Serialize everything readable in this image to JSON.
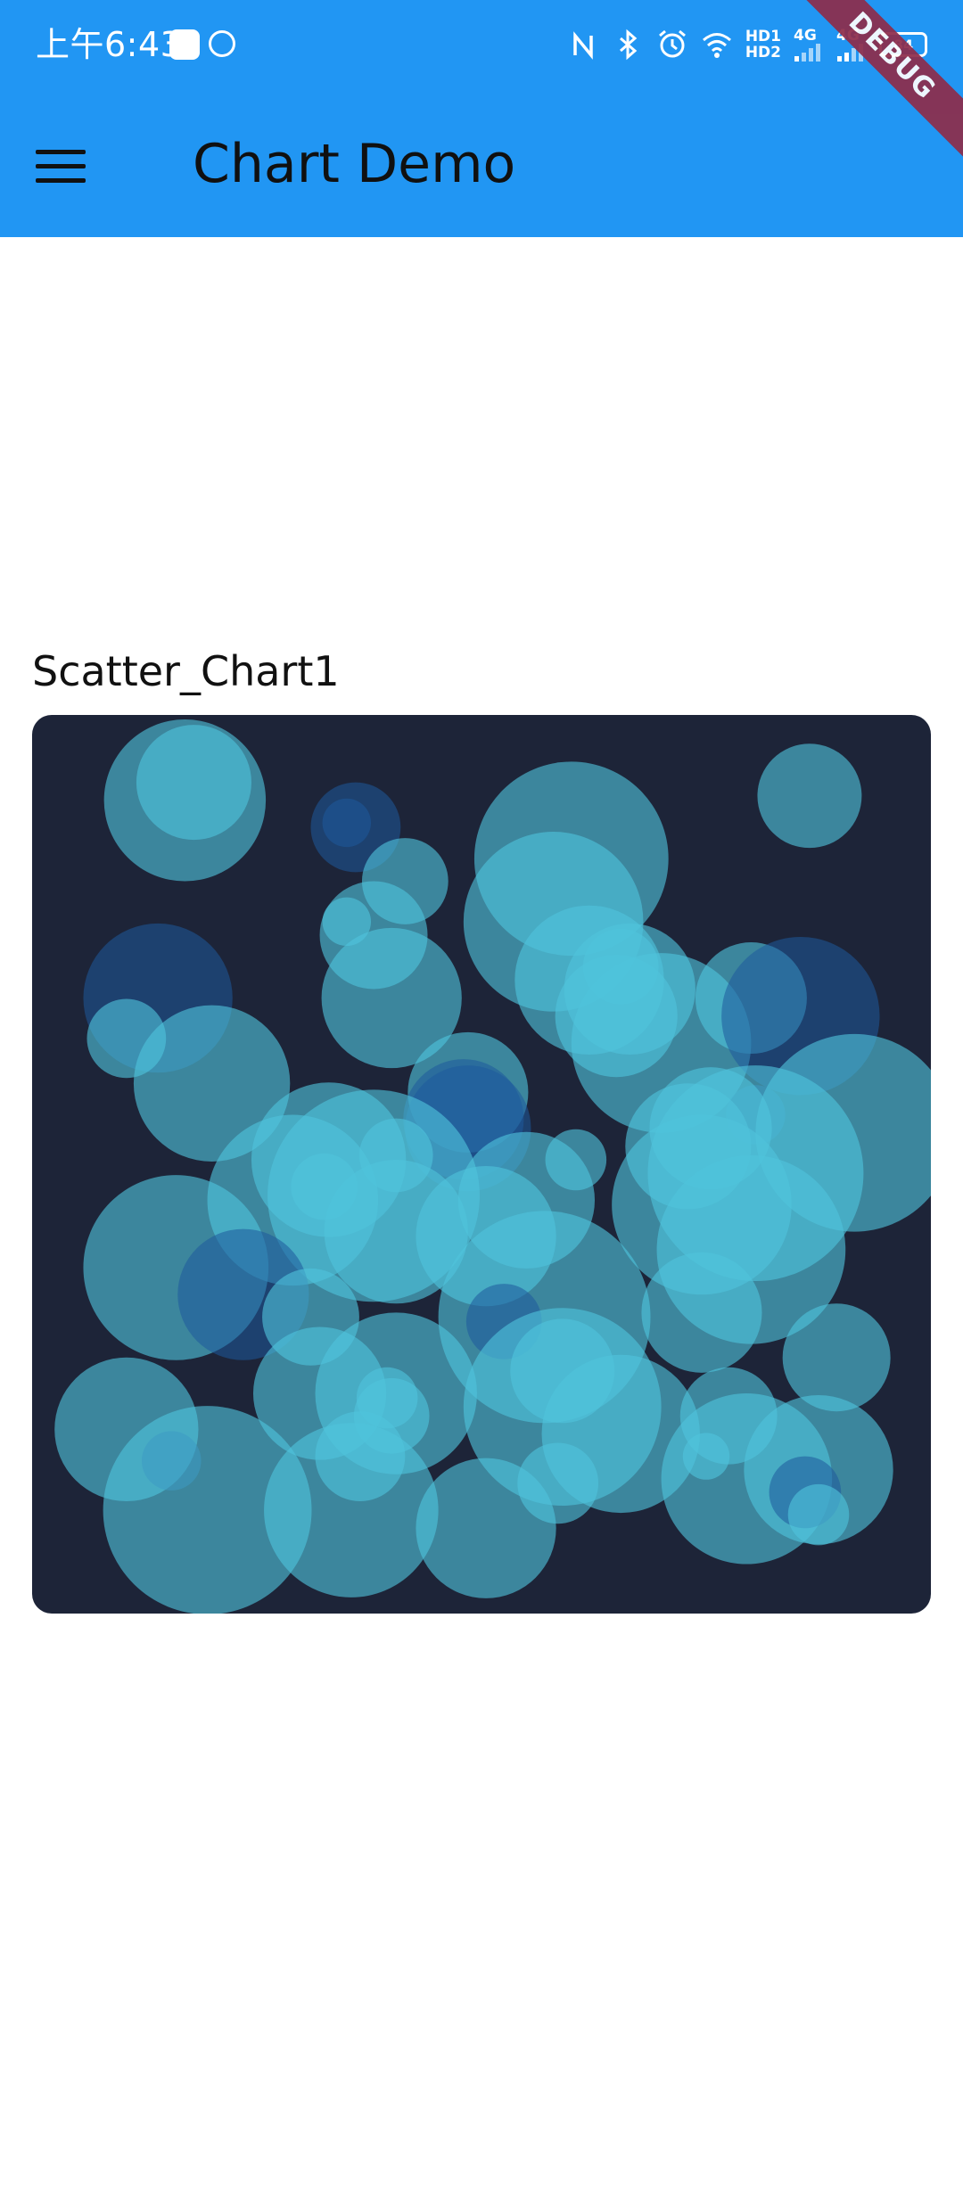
{
  "status_bar": {
    "time": "上午6:43",
    "network_1": "4G",
    "network_2": "4G",
    "hd_top": "HD1",
    "hd_bottom": "HD2",
    "battery": "84",
    "icons": [
      "nfc-icon",
      "bluetooth-icon",
      "alarm-icon",
      "wifi-icon",
      "signal-icon",
      "battery-icon"
    ]
  },
  "app_bar": {
    "title": "Chart Demo",
    "menu_icon": "menu-icon",
    "color": "#2196F3"
  },
  "debug_banner": "DEBUG",
  "chart": {
    "title": "Scatter_Chart1",
    "background": "#1d2438"
  },
  "chart_data": {
    "type": "scatter",
    "title": "",
    "xlabel": "",
    "ylabel": "",
    "xlim": [
      0,
      100
    ],
    "ylim": [
      0,
      100
    ],
    "grid": false,
    "colors": {
      "teal": "#4fc3dc",
      "blue": "#1e5a9c"
    },
    "points": [
      {
        "x": 17.0,
        "y": 90.5,
        "r": 9.0,
        "c": "teal"
      },
      {
        "x": 18.0,
        "y": 92.5,
        "r": 6.4,
        "c": "teal"
      },
      {
        "x": 36.0,
        "y": 87.5,
        "r": 5.0,
        "c": "blue"
      },
      {
        "x": 35.0,
        "y": 88.0,
        "r": 2.7,
        "c": "blue"
      },
      {
        "x": 41.5,
        "y": 81.5,
        "r": 4.8,
        "c": "teal"
      },
      {
        "x": 35.0,
        "y": 77.0,
        "r": 2.7,
        "c": "teal"
      },
      {
        "x": 38.0,
        "y": 75.5,
        "r": 6.0,
        "c": "teal"
      },
      {
        "x": 40.0,
        "y": 68.5,
        "r": 7.8,
        "c": "teal"
      },
      {
        "x": 60.0,
        "y": 84.0,
        "r": 10.8,
        "c": "teal"
      },
      {
        "x": 58.0,
        "y": 77.0,
        "r": 10.0,
        "c": "teal"
      },
      {
        "x": 62.0,
        "y": 70.5,
        "r": 8.3,
        "c": "teal"
      },
      {
        "x": 65.0,
        "y": 66.5,
        "r": 6.8,
        "c": "teal"
      },
      {
        "x": 66.5,
        "y": 69.5,
        "r": 7.3,
        "c": "teal"
      },
      {
        "x": 65.5,
        "y": 72.0,
        "r": 4.2,
        "c": "teal"
      },
      {
        "x": 70.0,
        "y": 63.5,
        "r": 10.0,
        "c": "teal"
      },
      {
        "x": 86.5,
        "y": 91.0,
        "r": 5.8,
        "c": "teal"
      },
      {
        "x": 80.0,
        "y": 68.5,
        "r": 6.2,
        "c": "teal"
      },
      {
        "x": 85.5,
        "y": 66.5,
        "r": 8.8,
        "c": "blue"
      },
      {
        "x": 14.0,
        "y": 68.5,
        "r": 8.3,
        "c": "blue"
      },
      {
        "x": 10.5,
        "y": 64.0,
        "r": 4.4,
        "c": "teal"
      },
      {
        "x": 20.0,
        "y": 59.0,
        "r": 8.7,
        "c": "teal"
      },
      {
        "x": 48.5,
        "y": 58.0,
        "r": 6.7,
        "c": "teal"
      },
      {
        "x": 48.0,
        "y": 55.0,
        "r": 6.7,
        "c": "blue"
      },
      {
        "x": 48.5,
        "y": 54.0,
        "r": 7.0,
        "c": "blue"
      },
      {
        "x": 80.5,
        "y": 55.5,
        "r": 3.3,
        "c": "blue"
      },
      {
        "x": 91.5,
        "y": 53.5,
        "r": 11.0,
        "c": "teal"
      },
      {
        "x": 75.5,
        "y": 54.0,
        "r": 6.8,
        "c": "teal"
      },
      {
        "x": 73.0,
        "y": 52.0,
        "r": 7.0,
        "c": "teal"
      },
      {
        "x": 80.5,
        "y": 49.0,
        "r": 12.0,
        "c": "teal"
      },
      {
        "x": 74.5,
        "y": 45.5,
        "r": 10.0,
        "c": "teal"
      },
      {
        "x": 80.0,
        "y": 40.5,
        "r": 10.5,
        "c": "teal"
      },
      {
        "x": 74.5,
        "y": 33.5,
        "r": 6.7,
        "c": "teal"
      },
      {
        "x": 60.5,
        "y": 50.5,
        "r": 3.4,
        "c": "teal"
      },
      {
        "x": 55.0,
        "y": 46.0,
        "r": 7.6,
        "c": "teal"
      },
      {
        "x": 33.0,
        "y": 50.5,
        "r": 8.6,
        "c": "teal"
      },
      {
        "x": 38.0,
        "y": 46.5,
        "r": 11.8,
        "c": "teal"
      },
      {
        "x": 40.5,
        "y": 51.0,
        "r": 4.1,
        "c": "teal"
      },
      {
        "x": 29.0,
        "y": 46.0,
        "r": 9.5,
        "c": "teal"
      },
      {
        "x": 32.5,
        "y": 47.5,
        "r": 3.7,
        "c": "teal"
      },
      {
        "x": 40.5,
        "y": 42.5,
        "r": 8.0,
        "c": "teal"
      },
      {
        "x": 50.5,
        "y": 42.0,
        "r": 7.8,
        "c": "teal"
      },
      {
        "x": 16.0,
        "y": 38.5,
        "r": 10.3,
        "c": "teal"
      },
      {
        "x": 23.5,
        "y": 35.5,
        "r": 7.3,
        "c": "blue"
      },
      {
        "x": 31.0,
        "y": 33.0,
        "r": 5.4,
        "c": "teal"
      },
      {
        "x": 57.0,
        "y": 33.0,
        "r": 11.8,
        "c": "teal"
      },
      {
        "x": 52.5,
        "y": 32.5,
        "r": 4.2,
        "c": "blue"
      },
      {
        "x": 89.5,
        "y": 28.5,
        "r": 6.0,
        "c": "teal"
      },
      {
        "x": 10.5,
        "y": 20.5,
        "r": 8.0,
        "c": "teal"
      },
      {
        "x": 15.5,
        "y": 17.0,
        "r": 3.3,
        "c": "blue"
      },
      {
        "x": 19.5,
        "y": 11.5,
        "r": 11.6,
        "c": "teal"
      },
      {
        "x": 32.0,
        "y": 24.5,
        "r": 7.4,
        "c": "teal"
      },
      {
        "x": 40.5,
        "y": 24.5,
        "r": 9.0,
        "c": "teal"
      },
      {
        "x": 39.5,
        "y": 24.0,
        "r": 3.4,
        "c": "teal"
      },
      {
        "x": 40.0,
        "y": 22.0,
        "r": 4.2,
        "c": "teal"
      },
      {
        "x": 36.5,
        "y": 17.5,
        "r": 5.0,
        "c": "teal"
      },
      {
        "x": 35.5,
        "y": 11.5,
        "r": 9.7,
        "c": "teal"
      },
      {
        "x": 50.5,
        "y": 9.5,
        "r": 7.8,
        "c": "teal"
      },
      {
        "x": 58.5,
        "y": 14.5,
        "r": 4.5,
        "c": "teal"
      },
      {
        "x": 59.0,
        "y": 23.0,
        "r": 11.0,
        "c": "teal"
      },
      {
        "x": 59.0,
        "y": 27.0,
        "r": 5.8,
        "c": "teal"
      },
      {
        "x": 65.5,
        "y": 20.0,
        "r": 8.8,
        "c": "teal"
      },
      {
        "x": 77.5,
        "y": 22.0,
        "r": 5.4,
        "c": "teal"
      },
      {
        "x": 75.0,
        "y": 17.5,
        "r": 2.6,
        "c": "teal"
      },
      {
        "x": 79.5,
        "y": 15.0,
        "r": 9.5,
        "c": "teal"
      },
      {
        "x": 87.5,
        "y": 16.0,
        "r": 8.3,
        "c": "teal"
      },
      {
        "x": 86.0,
        "y": 13.5,
        "r": 4.0,
        "c": "blue"
      },
      {
        "x": 87.5,
        "y": 11.0,
        "r": 3.4,
        "c": "teal"
      }
    ]
  }
}
